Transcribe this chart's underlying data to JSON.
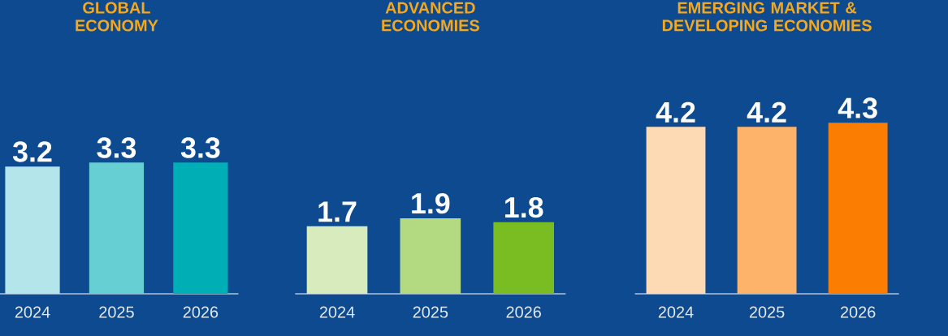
{
  "chart_data": [
    {
      "type": "bar",
      "title": "GLOBAL ECONOMY",
      "categories": [
        "2024",
        "2025",
        "2026"
      ],
      "values": [
        3.2,
        3.3,
        3.3
      ],
      "colors": [
        "#b3e5ea",
        "#66cfd4",
        "#00aeb6"
      ],
      "data_labels": true,
      "tick_labels": "x"
    },
    {
      "type": "bar",
      "title": "ADVANCED ECONOMIES",
      "categories": [
        "2024",
        "2025",
        "2026"
      ],
      "values": [
        1.7,
        1.9,
        1.8
      ],
      "colors": [
        "#d8ebbd",
        "#b3d981",
        "#79bd22"
      ],
      "data_labels": true,
      "tick_labels": "x"
    },
    {
      "type": "bar",
      "title": "EMERGING MARKET & DEVELOPING ECONOMIES",
      "categories": [
        "2024",
        "2025",
        "2026"
      ],
      "values": [
        4.2,
        4.2,
        4.3
      ],
      "colors": [
        "#fdd9b4",
        "#fdb46a",
        "#fb7d02"
      ],
      "data_labels": true,
      "tick_labels": "x"
    }
  ]
}
